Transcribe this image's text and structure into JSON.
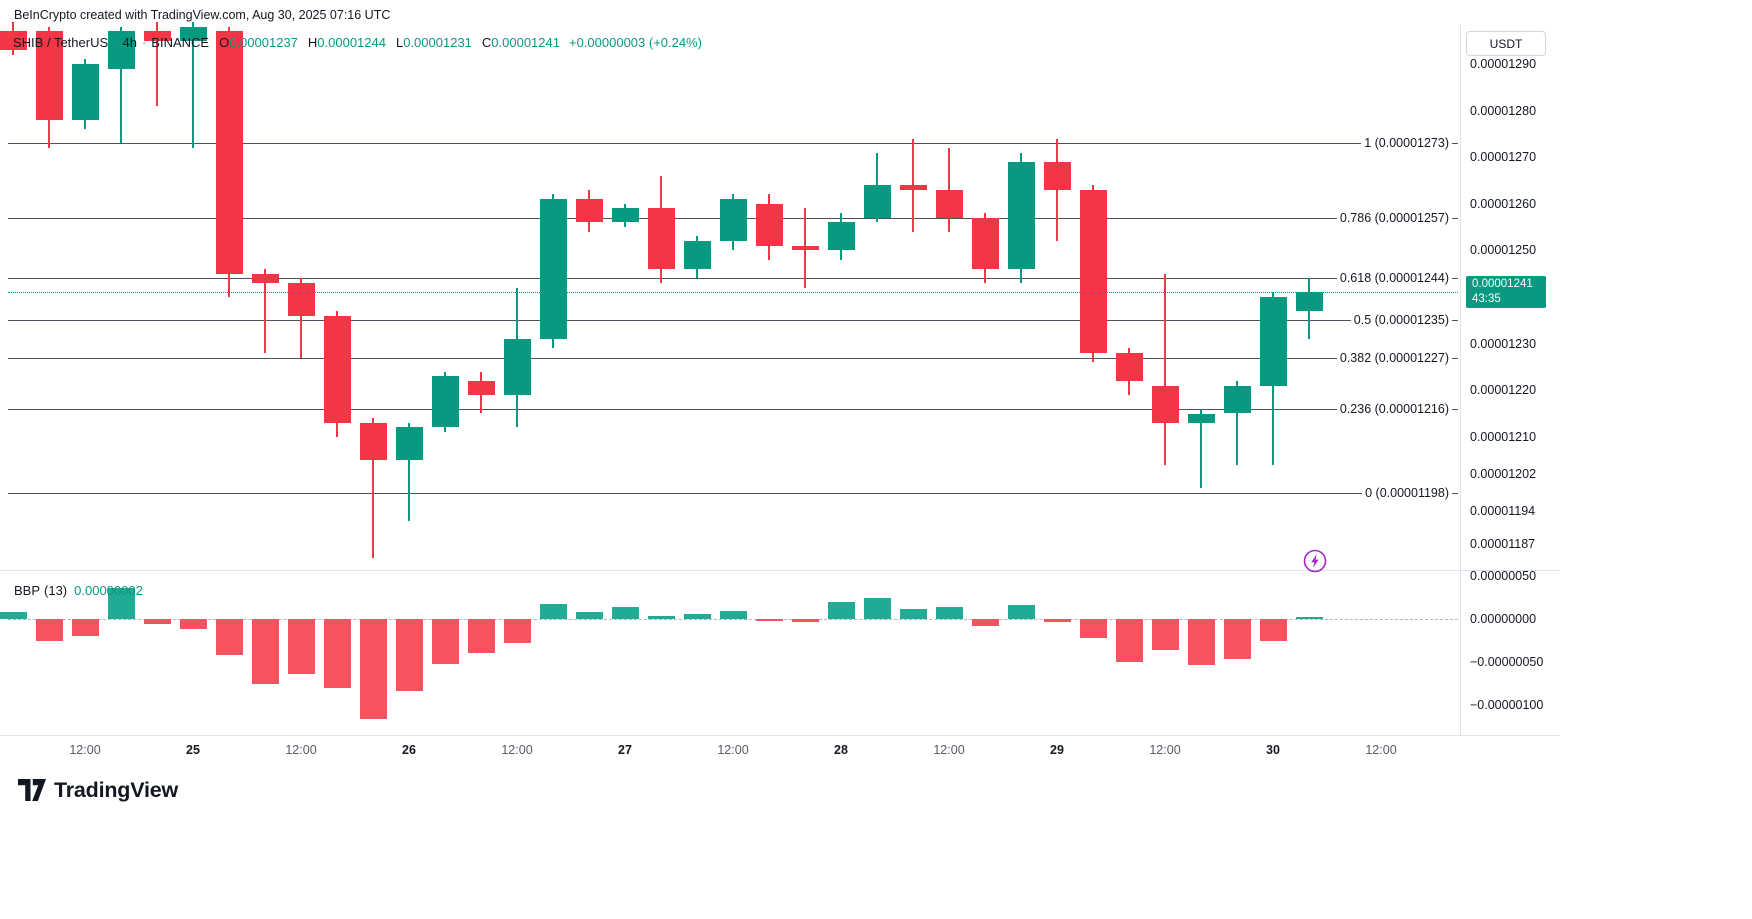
{
  "header": {
    "attribution": "BeInCrypto created with TradingView.com, Aug 30, 2025 07:16 UTC"
  },
  "legend": {
    "symbol": "SHIB / TetherUS",
    "separator": "·",
    "interval": "4h",
    "exchange": "BINANCE",
    "ohlc": {
      "o_label": "O",
      "o_value": "0.00001237",
      "h_label": "H",
      "h_value": "0.00001244",
      "l_label": "L",
      "l_value": "0.00001231",
      "c_label": "C",
      "c_value": "0.00001241",
      "change": "+0.00000003 (+0.24%)"
    }
  },
  "price_axis": {
    "currency_button": "USDT"
  },
  "footer": {
    "brand": "TradingView"
  },
  "icons": {
    "quick_trade": "lightning-icon",
    "logo_mark": "tradingview-logo-icon"
  },
  "colors": {
    "up": "#089981",
    "down": "#F23645",
    "bbp_up": "#22ab94",
    "bbp_down": "#F7525F",
    "current_price_bg": "#089981",
    "fib_line": "#4c525e",
    "accent_purple": "#a229c5",
    "axis_text": "#131722"
  },
  "chart_data": {
    "type": "candlestick",
    "title": "SHIB / TetherUS · 4h · BINANCE",
    "symbol": "SHIB / TetherUS",
    "interval": "4h",
    "exchange": "BINANCE",
    "unit_note": "all price values are in 1e-8 USDT units, e.g. 1241 = 0.00001241",
    "ylim": [
      1184,
      1299
    ],
    "candles": [
      [
        1297,
        1299,
        1292,
        1293
      ],
      [
        1297,
        1298,
        1272,
        1278
      ],
      [
        1278,
        1291,
        1276,
        1290
      ],
      [
        1289,
        1298,
        1273,
        1297
      ],
      [
        1297,
        1299,
        1281,
        1295
      ],
      [
        1295,
        1299,
        1272,
        1298
      ],
      [
        1297,
        1298,
        1240,
        1245
      ],
      [
        1245,
        1246,
        1228,
        1243
      ],
      [
        1243,
        1244,
        1227,
        1236
      ],
      [
        1236,
        1237,
        1210,
        1213
      ],
      [
        1213,
        1214,
        1184,
        1205
      ],
      [
        1205,
        1213,
        1192,
        1212
      ],
      [
        1212,
        1224,
        1211,
        1223
      ],
      [
        1222,
        1224,
        1215,
        1219
      ],
      [
        1219,
        1242,
        1212,
        1231
      ],
      [
        1231,
        1262,
        1229,
        1261
      ],
      [
        1261,
        1263,
        1254,
        1256
      ],
      [
        1256,
        1260,
        1255,
        1259
      ],
      [
        1259,
        1266,
        1243,
        1246
      ],
      [
        1246,
        1253,
        1244,
        1252
      ],
      [
        1252,
        1262,
        1250,
        1261
      ],
      [
        1260,
        1262,
        1248,
        1251
      ],
      [
        1251,
        1259,
        1242,
        1250
      ],
      [
        1250,
        1258,
        1248,
        1256
      ],
      [
        1257,
        1271,
        1256,
        1264
      ],
      [
        1264,
        1274,
        1254,
        1263
      ],
      [
        1263,
        1272,
        1254,
        1257
      ],
      [
        1257,
        1258,
        1243,
        1246
      ],
      [
        1246,
        1271,
        1243,
        1269
      ],
      [
        1269,
        1274,
        1252,
        1263
      ],
      [
        1263,
        1264,
        1226,
        1228
      ],
      [
        1228,
        1229,
        1219,
        1222
      ],
      [
        1221,
        1245,
        1204,
        1213
      ],
      [
        1213,
        1216,
        1199,
        1215
      ],
      [
        1215,
        1222,
        1204,
        1221
      ],
      [
        1221,
        1241,
        1204,
        1240
      ],
      [
        1237,
        1244,
        1231,
        1241
      ]
    ],
    "indicator": {
      "name": "BBP",
      "params": "(13)",
      "type": "histogram",
      "unit_note": "values in 1e-8 units",
      "last_value_text": "0.00000002",
      "ylim": [
        -120,
        55
      ],
      "values": [
        8,
        -25,
        -20,
        36,
        -6,
        -12,
        -42,
        -76,
        -64,
        -80,
        -116,
        -84,
        -52,
        -40,
        -28,
        18,
        8,
        14,
        3,
        6,
        9,
        -2,
        -4,
        20,
        24,
        12,
        14,
        -8,
        16,
        -4,
        -22,
        -50,
        -36,
        -54,
        -46,
        -26,
        2
      ]
    },
    "fib_levels": [
      {
        "label": "1 (0.00001273)",
        "value": 1273
      },
      {
        "label": "0.786 (0.00001257)",
        "value": 1257
      },
      {
        "label": "0.618 (0.00001244)",
        "value": 1244
      },
      {
        "label": "0.5 (0.00001235)",
        "value": 1235
      },
      {
        "label": "0.382 (0.00001227)",
        "value": 1227
      },
      {
        "label": "0.236 (0.00001216)",
        "value": 1216
      },
      {
        "label": "0 (0.00001198)",
        "value": 1198
      }
    ],
    "price_ticks": [
      {
        "text": "0.00001290",
        "value": 1290
      },
      {
        "text": "0.00001280",
        "value": 1280
      },
      {
        "text": "0.00001270",
        "value": 1270
      },
      {
        "text": "0.00001260",
        "value": 1260
      },
      {
        "text": "0.00001250",
        "value": 1250
      },
      {
        "text": "0.00001230",
        "value": 1230
      },
      {
        "text": "0.00001220",
        "value": 1220
      },
      {
        "text": "0.00001210",
        "value": 1210
      },
      {
        "text": "0.00001202",
        "value": 1202
      },
      {
        "text": "0.00001194",
        "value": 1194
      },
      {
        "text": "0.00001187",
        "value": 1187
      }
    ],
    "bbp_ticks": [
      {
        "text": "0.00000050",
        "value": 50
      },
      {
        "text": "0.00000000",
        "value": 0
      },
      {
        "text": "−0.00000050",
        "value": -50
      },
      {
        "text": "−0.00000100",
        "value": -100
      }
    ],
    "time_ticks": [
      {
        "text": "12:00",
        "index": 2,
        "major": false
      },
      {
        "text": "25",
        "index": 5,
        "major": true
      },
      {
        "text": "12:00",
        "index": 8,
        "major": false
      },
      {
        "text": "26",
        "index": 11,
        "major": true
      },
      {
        "text": "12:00",
        "index": 14,
        "major": false
      },
      {
        "text": "27",
        "index": 17,
        "major": true
      },
      {
        "text": "12:00",
        "index": 20,
        "major": false
      },
      {
        "text": "28",
        "index": 23,
        "major": true
      },
      {
        "text": "12:00",
        "index": 26,
        "major": false
      },
      {
        "text": "29",
        "index": 29,
        "major": true
      },
      {
        "text": "12:00",
        "index": 32,
        "major": false
      },
      {
        "text": "30",
        "index": 35,
        "major": true
      },
      {
        "text": "12:00",
        "index": 38,
        "major": false
      }
    ],
    "last": {
      "price_text": "0.00001241",
      "value": 1241,
      "countdown": "43:35"
    }
  }
}
